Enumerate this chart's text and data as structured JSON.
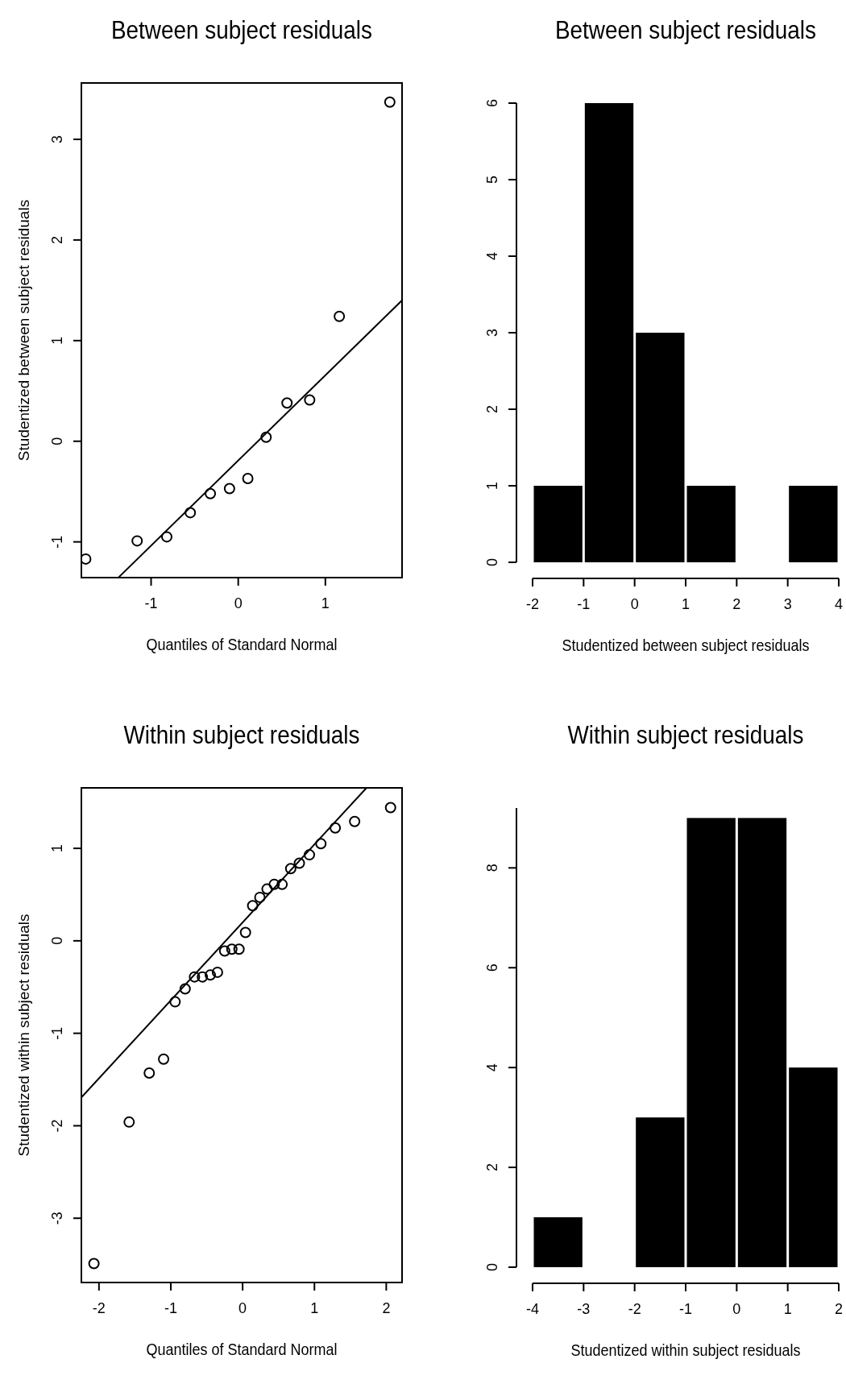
{
  "chart_data": [
    {
      "type": "scatter",
      "title": "Between subject residuals",
      "xlabel": "Quantiles of Standard Normal",
      "ylabel": "Studentized between subject residuals",
      "xlim": [
        -1.8,
        1.88
      ],
      "ylim": [
        -1.355,
        3.56
      ],
      "xticks": [
        -1,
        0,
        1
      ],
      "yticks": [
        -1,
        0,
        1,
        2,
        3
      ],
      "grid": false,
      "series": [
        {
          "type": "scatter",
          "color": "#000000",
          "marker": "circle",
          "x": [
            -1.75,
            -1.16,
            -0.82,
            -0.55,
            -0.32,
            -0.1,
            0.11,
            0.32,
            0.56,
            0.82,
            1.16,
            1.74
          ],
          "values": [
            -1.17,
            -0.99,
            -0.95,
            -0.71,
            -0.52,
            -0.47,
            -0.37,
            0.04,
            0.38,
            0.41,
            1.24,
            3.37
          ]
        },
        {
          "type": "line",
          "color": "#000000",
          "line_style": "solid",
          "x": [
            -1.37,
            1.88
          ],
          "values": [
            -1.35,
            1.4
          ]
        }
      ]
    },
    {
      "type": "histogram",
      "title": "Between subject residuals",
      "xlabel": "Studentized between subject residuals",
      "xlim": [
        -2,
        4
      ],
      "ylim": [
        0,
        6
      ],
      "xticks": [
        -2,
        -1,
        0,
        1,
        2,
        3,
        4
      ],
      "yticks": [
        0,
        1,
        2,
        3,
        4,
        5,
        6
      ],
      "grid": false,
      "color": "#000000",
      "bins": [
        -2,
        -1,
        0,
        1,
        2,
        3,
        4
      ],
      "values": [
        1,
        6,
        3,
        1,
        0,
        1
      ]
    },
    {
      "type": "scatter",
      "title": "Within subject residuals",
      "xlabel": "Quantiles of Standard Normal",
      "ylabel": "Studentized within subject residuals",
      "xlim": [
        -2.245,
        2.22
      ],
      "ylim": [
        -3.695,
        1.654
      ],
      "xticks": [
        -2,
        -1,
        0,
        1,
        2
      ],
      "yticks": [
        -3,
        -2,
        -1,
        0,
        1
      ],
      "grid": false,
      "series": [
        {
          "type": "scatter",
          "color": "#000000",
          "marker": "circle",
          "x": [
            -2.07,
            -1.58,
            -1.3,
            -1.1,
            -0.94,
            -0.8,
            -0.67,
            -0.56,
            -0.45,
            -0.35,
            -0.25,
            -0.15,
            -0.05,
            0.04,
            0.14,
            0.24,
            0.34,
            0.44,
            0.55,
            0.67,
            0.79,
            0.93,
            1.09,
            1.29,
            1.56,
            2.06
          ],
          "values": [
            -3.49,
            -1.96,
            -1.43,
            -1.28,
            -0.66,
            -0.52,
            -0.39,
            -0.39,
            -0.37,
            -0.34,
            -0.11,
            -0.09,
            -0.09,
            0.09,
            0.38,
            0.47,
            0.56,
            0.61,
            0.61,
            0.78,
            0.84,
            0.93,
            1.05,
            1.22,
            1.29,
            1.44
          ]
        },
        {
          "type": "line",
          "color": "#000000",
          "line_style": "solid",
          "x": [
            -2.24,
            1.72
          ],
          "values": [
            -1.69,
            1.65
          ]
        }
      ]
    },
    {
      "type": "histogram",
      "title": "Within subject residuals",
      "xlabel": "Studentized within subject residuals",
      "xlim": [
        -4,
        2
      ],
      "ylim": [
        0,
        9.2
      ],
      "xticks": [
        -4,
        -3,
        -2,
        -1,
        0,
        1,
        2
      ],
      "yticks": [
        0,
        2,
        4,
        6,
        8
      ],
      "grid": false,
      "color": "#000000",
      "bins": [
        -4,
        -3,
        -2,
        -1,
        0,
        1,
        2
      ],
      "values": [
        1,
        0,
        3,
        9,
        9,
        4
      ]
    }
  ]
}
